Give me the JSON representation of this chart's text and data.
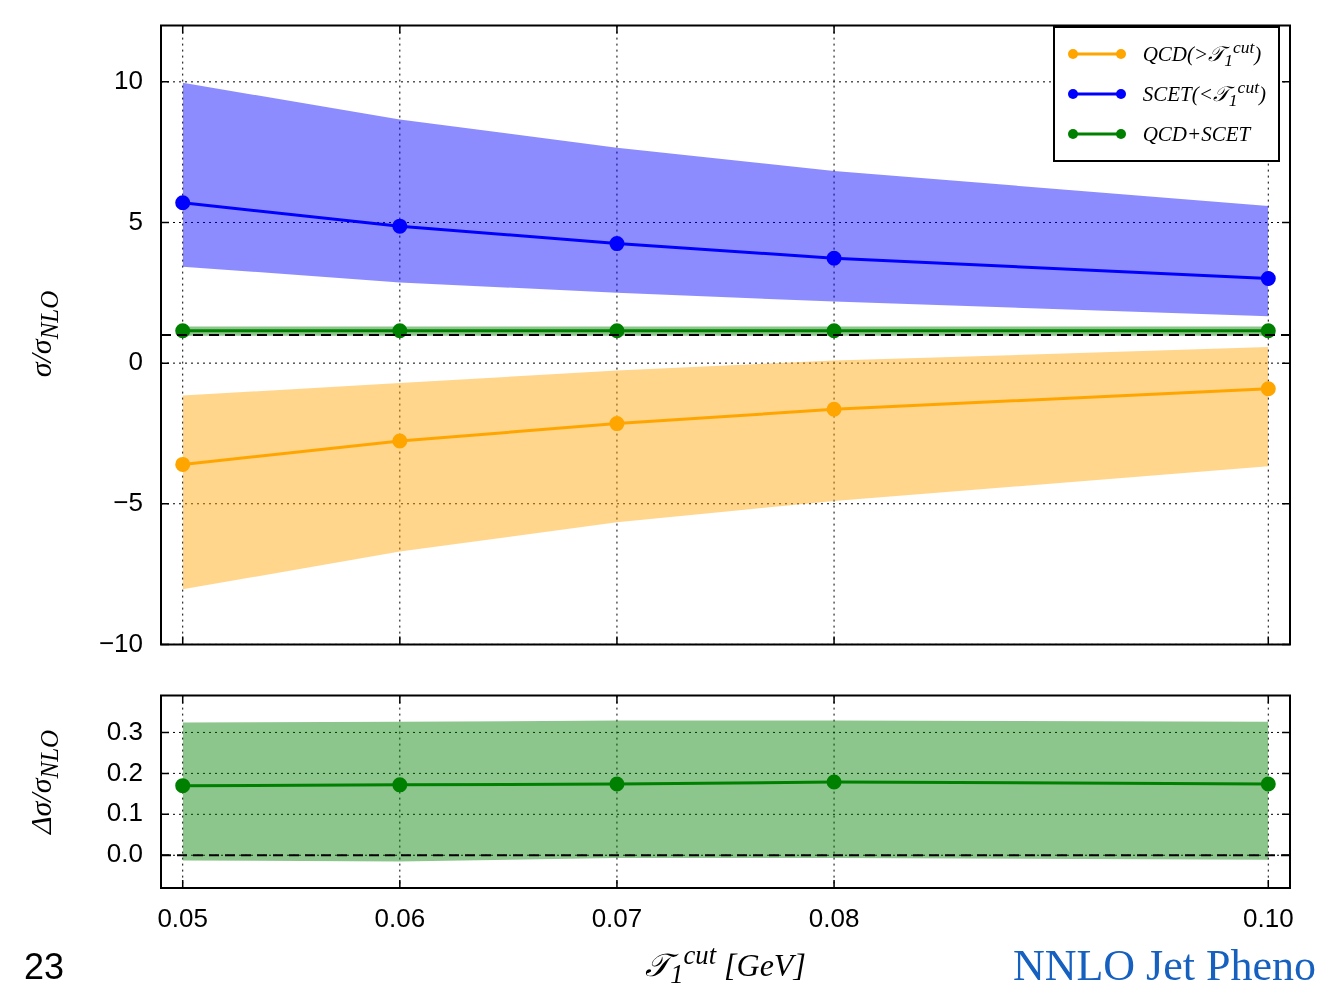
{
  "chart_data": [
    {
      "type": "line",
      "x": [
        0.05,
        0.06,
        0.07,
        0.08,
        0.1
      ],
      "ylabel": "σ/σ$_{NLO}$",
      "xlim": [
        0.049,
        0.101
      ],
      "ylim": [
        -10,
        12
      ],
      "xticks": [
        {
          "value": 0.05,
          "label": null
        },
        {
          "value": 0.06,
          "label": null
        },
        {
          "value": 0.07,
          "label": null
        },
        {
          "value": 0.08,
          "label": null
        },
        {
          "value": 0.1,
          "label": null
        }
      ],
      "yticks": [
        {
          "value": -10,
          "label": "−10"
        },
        {
          "value": -5,
          "label": "−5"
        },
        0,
        5,
        10
      ],
      "tick_labels": "y",
      "grid": true,
      "legend": "top right",
      "marker": "circle",
      "line_style": "solid",
      "ref_lines": [
        {
          "axis": "y",
          "value": 1,
          "color": "#000000",
          "line_style": "dashed"
        }
      ],
      "series": [
        {
          "name": "QCD(>𝒯$_{1}$$^{cut}$)",
          "color": "#ffa500",
          "values": [
            -3.6,
            -2.77,
            -2.15,
            -1.64,
            -0.91
          ],
          "lower": [
            -8.04,
            -6.7,
            -5.66,
            -4.9,
            -3.67
          ],
          "upper": [
            -1.15,
            -0.71,
            -0.26,
            0.09,
            0.57
          ]
        },
        {
          "name": "SCET(<𝒯$_{1}$$^{cut}$)",
          "color": "#0000ff",
          "values": [
            5.7,
            4.87,
            4.25,
            3.73,
            3.01
          ],
          "lower": [
            3.43,
            2.87,
            2.5,
            2.19,
            1.67
          ],
          "upper": [
            9.97,
            8.66,
            7.66,
            6.83,
            5.59
          ]
        },
        {
          "name": "QCD+SCET",
          "color": "#008000",
          "values": [
            1.15,
            1.15,
            1.15,
            1.15,
            1.15
          ],
          "lower": [
            0.97,
            0.97,
            0.97,
            0.97,
            0.97
          ],
          "upper": [
            1.3,
            1.3,
            1.3,
            1.3,
            1.3
          ]
        }
      ]
    },
    {
      "type": "line",
      "x": [
        0.05,
        0.06,
        0.07,
        0.08,
        0.1
      ],
      "xlabel": "𝒯$_{1}$$^{cut}$ [GeV]",
      "ylabel": "Δσ/σ$_{NLO}$",
      "xlim": [
        0.049,
        0.101
      ],
      "ylim": [
        -0.08,
        0.39
      ],
      "xticks": [
        {
          "value": 0.05,
          "label": "0.05"
        },
        {
          "value": 0.06,
          "label": "0.06"
        },
        {
          "value": 0.07,
          "label": "0.07"
        },
        {
          "value": 0.08,
          "label": "0.08"
        },
        {
          "value": 0.1,
          "label": "0.10"
        }
      ],
      "yticks": [
        {
          "value": 0,
          "label": "0.0"
        },
        0.1,
        0.2,
        0.3
      ],
      "grid": true,
      "marker": "circle",
      "line_style": "solid",
      "ref_lines": [
        {
          "axis": "y",
          "value": 0,
          "color": "#000000",
          "line_style": "dashed"
        }
      ],
      "annotations": [
        "23",
        "NNLO Jet Pheno"
      ],
      "series": [
        {
          "color": "#008000",
          "values": [
            0.17,
            0.172,
            0.174,
            0.179,
            0.174
          ],
          "lower": [
            -0.013,
            -0.015,
            -0.007,
            -0.007,
            -0.011
          ],
          "upper": [
            0.324,
            0.326,
            0.329,
            0.329,
            0.326
          ]
        }
      ]
    }
  ]
}
